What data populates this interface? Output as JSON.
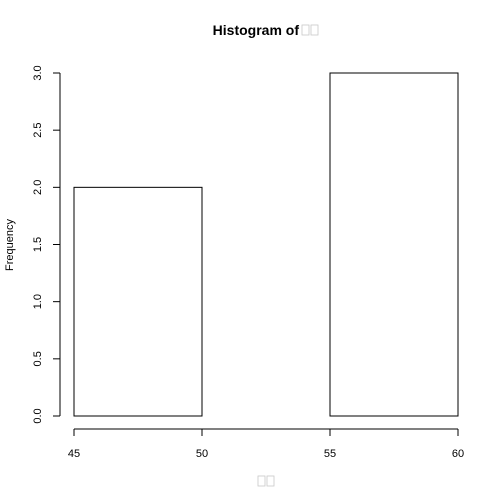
{
  "chart_data": {
    "type": "bar",
    "title": "Histogram of □□",
    "title_prefix": "Histogram of",
    "xlabel": "□□",
    "ylabel": "Frequency",
    "bins": [
      {
        "start": 45,
        "end": 50,
        "count": 2
      },
      {
        "start": 50,
        "end": 55,
        "count": 0
      },
      {
        "start": 55,
        "end": 60,
        "count": 3
      }
    ],
    "xlim": [
      45,
      60
    ],
    "ylim": [
      0,
      3
    ],
    "x_ticks": [
      45,
      50,
      55,
      60
    ],
    "x_tick_labels": [
      "45",
      "50",
      "55",
      "60"
    ],
    "y_ticks": [
      0,
      0.5,
      1,
      1.5,
      2,
      2.5,
      3
    ],
    "y_tick_labels": [
      "0.0",
      "0.5",
      "1.0",
      "1.5",
      "2.0",
      "2.5",
      "3.0"
    ],
    "grid": false,
    "bar_fill": "#ffffff",
    "bar_stroke": "#000000",
    "missing_glyph_color": "#c8c8c8"
  }
}
